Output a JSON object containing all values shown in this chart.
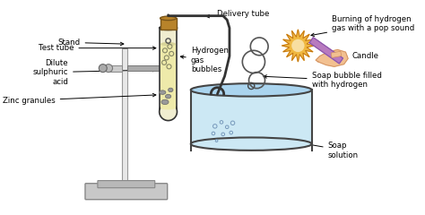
{
  "bg_color": "#ffffff",
  "label_color": "#000000",
  "labels": {
    "delivery_tube": "Delivery tube",
    "stand": "Stand",
    "test_tube": "Test tube",
    "dilute_sulphuric": "Dilute\nsulphuric\nacid",
    "zinc_granules": "Zinc granules",
    "hydrogen_bubbles": "Hydrogen\ngas\nbubbles",
    "burning": "Burning of hydrogen\ngas with a pop sound",
    "candle": "Candle",
    "soap_bubble": "Soap bubble filled\nwith hydrogen",
    "soap_solution": "Soap\nsolution"
  },
  "colors": {
    "stand_white": "#e8e8e8",
    "stand_outline": "#999999",
    "base_gray": "#c8c8c8",
    "base_outline": "#888888",
    "test_tube_fill": "#f0edd0",
    "test_tube_outline": "#333333",
    "cork_fill": "#b8832a",
    "cork_outline": "#7a5518",
    "liquid_fill": "#eeeaaa",
    "tube_color": "#333333",
    "beaker_outline": "#444444",
    "beaker_fill": "#cce8f4",
    "beaker_top": "#aad4ee",
    "burst_fill": "#f0b840",
    "burst_outline": "#c07010",
    "candle_fill": "#b87abf",
    "candle_outline": "#8855aa",
    "hand_fill": "#f2c090",
    "hand_outline": "#d09060",
    "bubble_outline": "#555555",
    "clamp_gray": "#aaaaaa",
    "clamp_outline": "#777777",
    "zinc_color": "#999999",
    "zinc_outline": "#666666",
    "small_bubble_color": "#7799bb"
  }
}
